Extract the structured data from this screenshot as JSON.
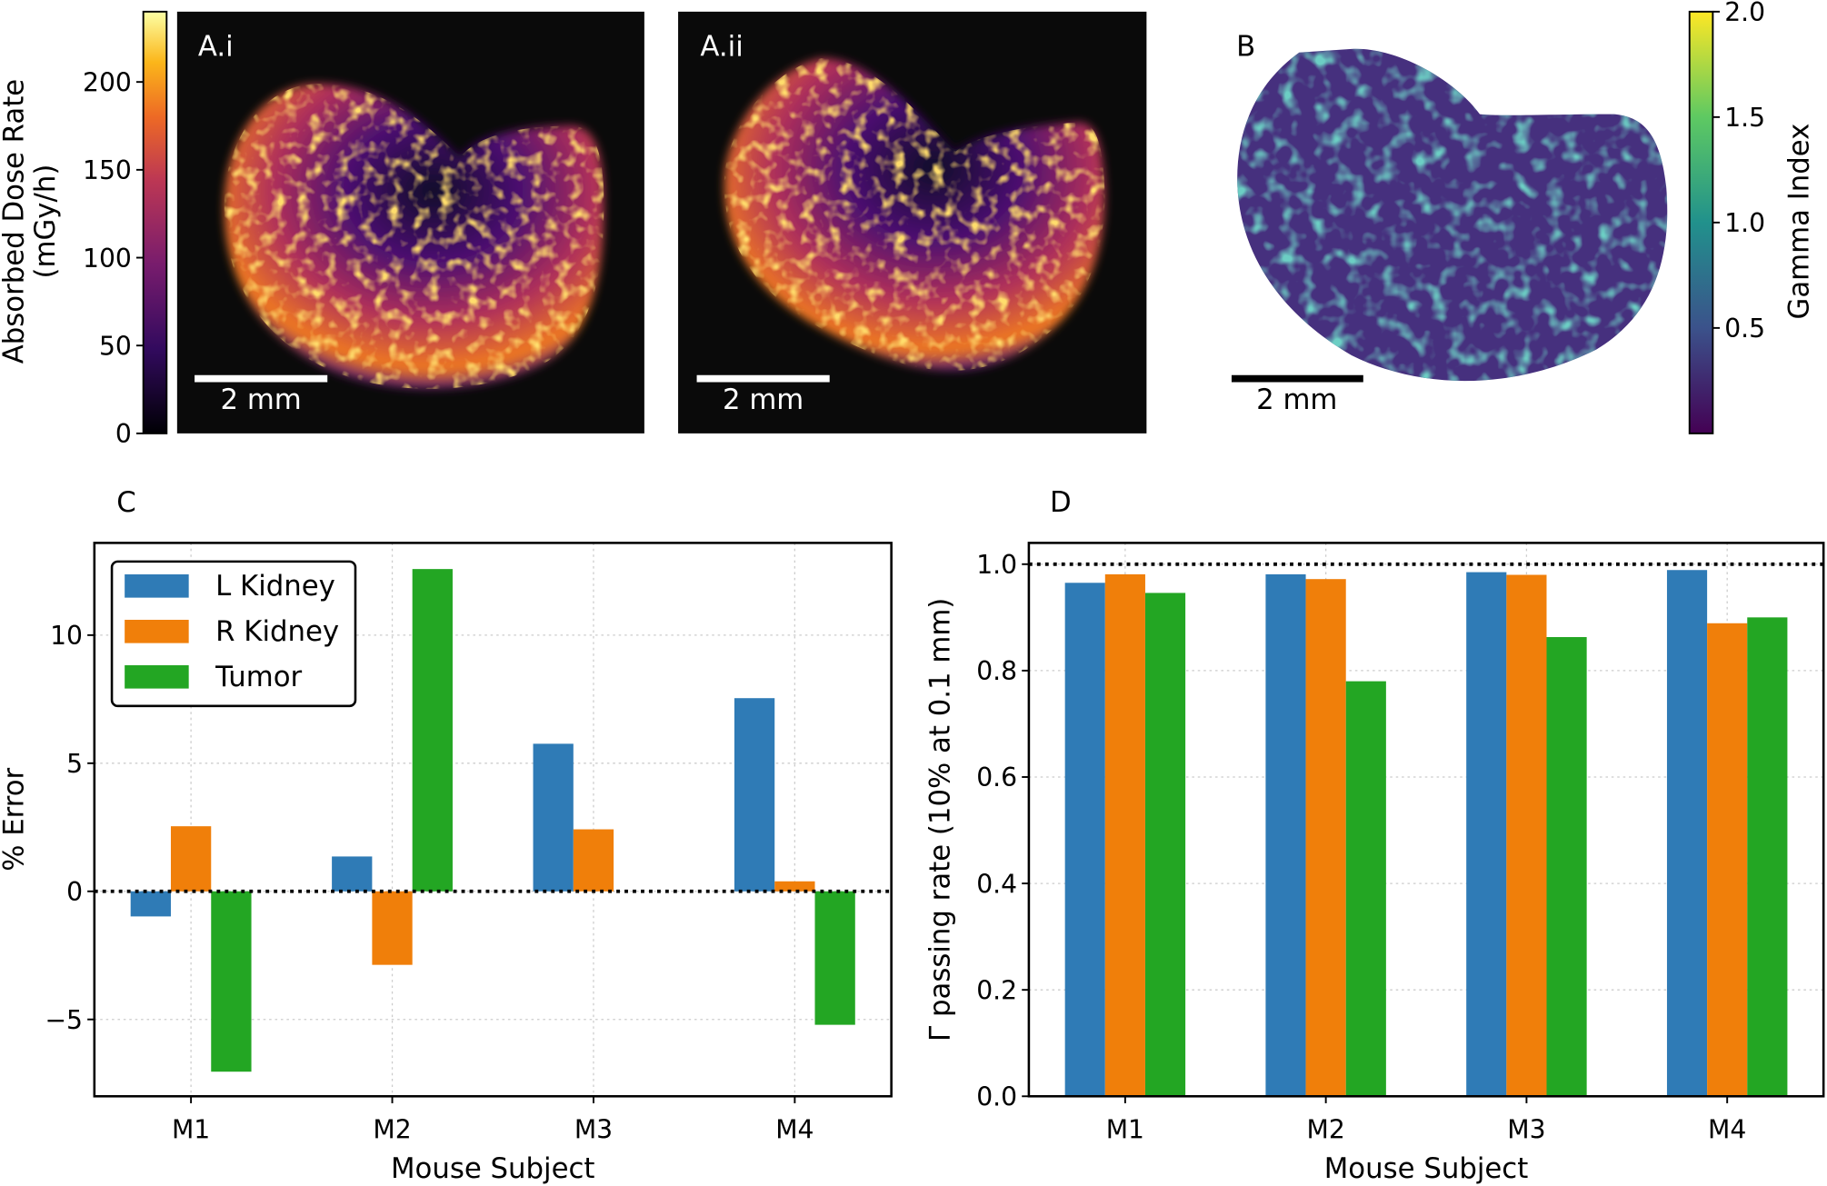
{
  "panels": {
    "a_i": {
      "label": "A.i",
      "scalebar": "2 mm"
    },
    "a_ii": {
      "label": "A.ii",
      "scalebar": "2 mm"
    },
    "b": {
      "label": "B",
      "scalebar": "2 mm"
    },
    "c": {
      "label": "C"
    },
    "d": {
      "label": "D"
    }
  },
  "colorbars": {
    "dose": {
      "label_line1": "Absorbed Dose Rate",
      "label_line2": "(mGy/h)",
      "colormap": "inferno",
      "range": [
        0,
        240
      ],
      "ticks": [
        "0",
        "50",
        "100",
        "150",
        "200"
      ]
    },
    "gamma": {
      "label": "Gamma Index",
      "colormap": "viridis",
      "range": [
        0,
        2.0
      ],
      "ticks": [
        "0.5",
        "1.0",
        "1.5",
        "2.0"
      ]
    }
  },
  "colors": {
    "l_kidney": "#2f7bb6",
    "r_kidney": "#f07f0a",
    "tumor": "#23a623"
  },
  "chart_data": [
    {
      "type": "heatmap",
      "title": "A.i",
      "colormap": "inferno",
      "colorbar_range": [
        0,
        240
      ],
      "colorbar_label": "Absorbed Dose Rate (mGy/h)",
      "scalebar": "2 mm"
    },
    {
      "type": "heatmap",
      "title": "A.ii",
      "colormap": "inferno",
      "colorbar_range": [
        0,
        240
      ],
      "colorbar_label": "Absorbed Dose Rate (mGy/h)",
      "scalebar": "2 mm"
    },
    {
      "type": "heatmap",
      "title": "B",
      "colormap": "viridis",
      "colorbar_range": [
        0,
        2.0
      ],
      "colorbar_label": "Gamma Index",
      "scalebar": "2 mm"
    },
    {
      "type": "bar",
      "panel": "C",
      "categories": [
        "M1",
        "M2",
        "M3",
        "M4"
      ],
      "series": [
        {
          "name": "L Kidney",
          "values": [
            -0.98,
            1.36,
            5.76,
            7.54
          ]
        },
        {
          "name": "R Kidney",
          "values": [
            2.54,
            -2.87,
            2.42,
            0.39
          ]
        },
        {
          "name": "Tumor",
          "values": [
            -7.04,
            12.58,
            0.0,
            -5.21
          ]
        }
      ],
      "xlabel": "Mouse Subject",
      "ylabel": "% Error",
      "ylim": [
        -8.0,
        13.6
      ],
      "yticks": [
        -5,
        0,
        5,
        10
      ],
      "ytick_labels": [
        "−5",
        "0",
        "5",
        "10"
      ],
      "reference_line": 0,
      "grid": true,
      "legend": "top-left"
    },
    {
      "type": "bar",
      "panel": "D",
      "categories": [
        "M1",
        "M2",
        "M3",
        "M4"
      ],
      "series": [
        {
          "name": "L Kidney",
          "values": [
            0.965,
            0.981,
            0.985,
            0.989
          ]
        },
        {
          "name": "R Kidney",
          "values": [
            0.981,
            0.972,
            0.98,
            0.889
          ]
        },
        {
          "name": "Tumor",
          "values": [
            0.946,
            0.78,
            0.863,
            0.9
          ]
        }
      ],
      "xlabel": "Mouse Subject",
      "ylabel": "Γ passing rate (10% at 0.1 mm)",
      "ylim": [
        0.0,
        1.04
      ],
      "yticks": [
        0.0,
        0.2,
        0.4,
        0.6,
        0.8,
        1.0
      ],
      "ytick_labels": [
        "0.0",
        "0.2",
        "0.4",
        "0.6",
        "0.8",
        "1.0"
      ],
      "reference_line": 1.0,
      "grid": true,
      "legend": "none"
    }
  ]
}
